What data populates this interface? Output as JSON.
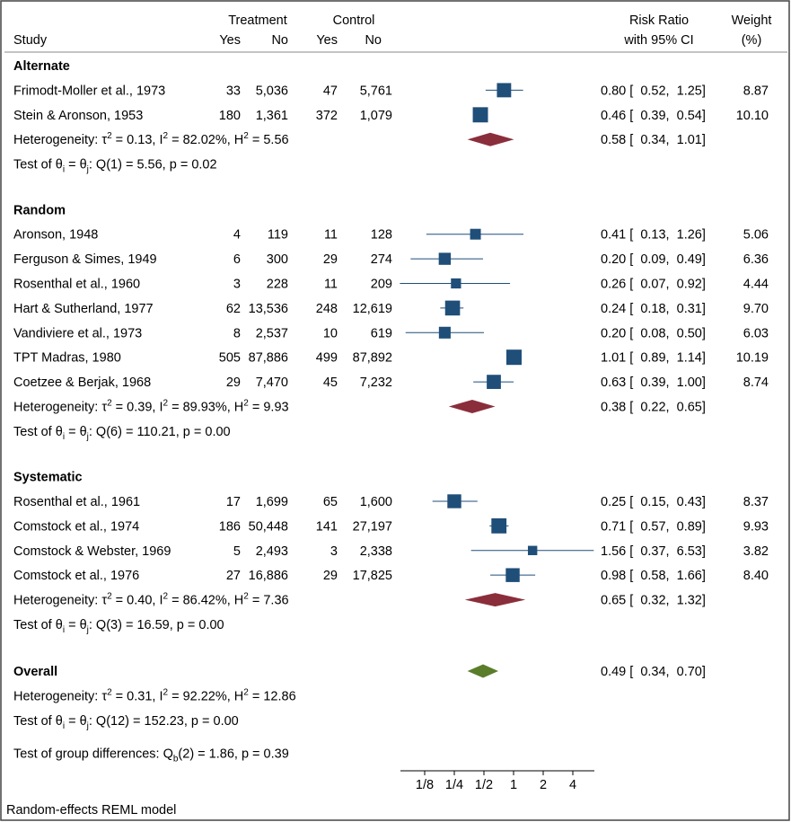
{
  "chart_data": {
    "type": "forest",
    "columns": {
      "study": "Study",
      "group1": "Treatment",
      "group2": "Control",
      "yes": "Yes",
      "no": "No",
      "effect_line1": "Risk Ratio",
      "effect_line2": "with 95% CI",
      "weight_line1": "Weight",
      "weight_line2": "(%)"
    },
    "x_axis": {
      "scale": "log",
      "ticks": [
        {
          "value": 0.125,
          "label": "1/8"
        },
        {
          "value": 0.25,
          "label": "1/4"
        },
        {
          "value": 0.5,
          "label": "1/2"
        },
        {
          "value": 1,
          "label": "1"
        },
        {
          "value": 2,
          "label": "2"
        },
        {
          "value": 4,
          "label": "4"
        }
      ],
      "reference_line": 1
    },
    "groups": [
      {
        "name": "Alternate",
        "studies": [
          {
            "study": "Frimodt-Moller et al., 1973",
            "t_yes": "33",
            "t_no": "5,036",
            "c_yes": "47",
            "c_no": "5,761",
            "rr": 0.8,
            "lo": 0.52,
            "hi": 1.25,
            "ci": "0.80 [  0.52,  1.25]",
            "weight": "8.87"
          },
          {
            "study": "Stein & Aronson, 1953",
            "t_yes": "180",
            "t_no": "1,361",
            "c_yes": "372",
            "c_no": "1,079",
            "rr": 0.46,
            "lo": 0.39,
            "hi": 0.54,
            "ci": "0.46 [  0.39,  0.54]",
            "weight": "10.10"
          }
        ],
        "summary": {
          "rr": 0.58,
          "lo": 0.34,
          "hi": 1.01,
          "ci": "0.58 [  0.34,  1.01]"
        },
        "heterogeneity": {
          "label": "Heterogeneity: ",
          "tau2": "0.13",
          "i2": "82.02%",
          "h2": "5.56"
        },
        "test": {
          "label": "Test of θ",
          "df": "1",
          "q": "5.56",
          "p": "0.02"
        }
      },
      {
        "name": "Random",
        "studies": [
          {
            "study": "Aronson, 1948",
            "t_yes": "4",
            "t_no": "119",
            "c_yes": "11",
            "c_no": "128",
            "rr": 0.41,
            "lo": 0.13,
            "hi": 1.26,
            "ci": "0.41 [  0.13,  1.26]",
            "weight": "5.06"
          },
          {
            "study": "Ferguson & Simes, 1949",
            "t_yes": "6",
            "t_no": "300",
            "c_yes": "29",
            "c_no": "274",
            "rr": 0.2,
            "lo": 0.09,
            "hi": 0.49,
            "ci": "0.20 [  0.09,  0.49]",
            "weight": "6.36"
          },
          {
            "study": "Rosenthal et al., 1960",
            "t_yes": "3",
            "t_no": "228",
            "c_yes": "11",
            "c_no": "209",
            "rr": 0.26,
            "lo": 0.07,
            "hi": 0.92,
            "ci": "0.26 [  0.07,  0.92]",
            "weight": "4.44"
          },
          {
            "study": "Hart & Sutherland, 1977",
            "t_yes": "62",
            "t_no": "13,536",
            "c_yes": "248",
            "c_no": "12,619",
            "rr": 0.24,
            "lo": 0.18,
            "hi": 0.31,
            "ci": "0.24 [  0.18,  0.31]",
            "weight": "9.70"
          },
          {
            "study": "Vandiviere et al., 1973",
            "t_yes": "8",
            "t_no": "2,537",
            "c_yes": "10",
            "c_no": "619",
            "rr": 0.2,
            "lo": 0.08,
            "hi": 0.5,
            "ci": "0.20 [  0.08,  0.50]",
            "weight": "6.03"
          },
          {
            "study": "TPT Madras, 1980",
            "t_yes": "505",
            "t_no": "87,886",
            "c_yes": "499",
            "c_no": "87,892",
            "rr": 1.01,
            "lo": 0.89,
            "hi": 1.14,
            "ci": "1.01 [  0.89,  1.14]",
            "weight": "10.19"
          },
          {
            "study": "Coetzee & Berjak, 1968",
            "t_yes": "29",
            "t_no": "7,470",
            "c_yes": "45",
            "c_no": "7,232",
            "rr": 0.63,
            "lo": 0.39,
            "hi": 1.0,
            "ci": "0.63 [  0.39,  1.00]",
            "weight": "8.74"
          }
        ],
        "summary": {
          "rr": 0.38,
          "lo": 0.22,
          "hi": 0.65,
          "ci": "0.38 [  0.22,  0.65]"
        },
        "heterogeneity": {
          "label": "Heterogeneity: ",
          "tau2": "0.39",
          "i2": "89.93%",
          "h2": "9.93"
        },
        "test": {
          "label": "Test of θ",
          "df": "6",
          "q": "110.21",
          "p": "0.00"
        }
      },
      {
        "name": "Systematic",
        "studies": [
          {
            "study": "Rosenthal et al., 1961",
            "t_yes": "17",
            "t_no": "1,699",
            "c_yes": "65",
            "c_no": "1,600",
            "rr": 0.25,
            "lo": 0.15,
            "hi": 0.43,
            "ci": "0.25 [  0.15,  0.43]",
            "weight": "8.37"
          },
          {
            "study": "Comstock et al., 1974",
            "t_yes": "186",
            "t_no": "50,448",
            "c_yes": "141",
            "c_no": "27,197",
            "rr": 0.71,
            "lo": 0.57,
            "hi": 0.89,
            "ci": "0.71 [  0.57,  0.89]",
            "weight": "9.93"
          },
          {
            "study": "Comstock & Webster, 1969",
            "t_yes": "5",
            "t_no": "2,493",
            "c_yes": "3",
            "c_no": "2,338",
            "rr": 1.56,
            "lo": 0.37,
            "hi": 6.53,
            "ci": "1.56 [  0.37,  6.53]",
            "weight": "3.82"
          },
          {
            "study": "Comstock et al., 1976",
            "t_yes": "27",
            "t_no": "16,886",
            "c_yes": "29",
            "c_no": "17,825",
            "rr": 0.98,
            "lo": 0.58,
            "hi": 1.66,
            "ci": "0.98 [  0.58,  1.66]",
            "weight": "8.40"
          }
        ],
        "summary": {
          "rr": 0.65,
          "lo": 0.32,
          "hi": 1.32,
          "ci": "0.65 [  0.32,  1.32]"
        },
        "heterogeneity": {
          "label": "Heterogeneity: ",
          "tau2": "0.40",
          "i2": "86.42%",
          "h2": "7.36"
        },
        "test": {
          "label": "Test of θ",
          "df": "3",
          "q": "16.59",
          "p": "0.00"
        }
      }
    ],
    "overall": {
      "name": "Overall",
      "summary": {
        "rr": 0.49,
        "lo": 0.34,
        "hi": 0.7,
        "ci": "0.49 [  0.34,  0.70]"
      },
      "heterogeneity": {
        "label": "Heterogeneity: ",
        "tau2": "0.31",
        "i2": "92.22%",
        "h2": "12.86"
      },
      "test": {
        "label": "Test of θ",
        "df": "12",
        "q": "152.23",
        "p": "0.00"
      }
    },
    "group_test": {
      "label": "Test of group differences: Q",
      "df": "2",
      "q": "1.86",
      "p": "0.39"
    },
    "note": "Random-effects REML model",
    "colors": {
      "study_marker": "#1f4e79",
      "ci_line": "#1f4e79",
      "group_diamond": "#8b2e3b",
      "overall_diamond": "#5a7d2a",
      "border": "#444444"
    }
  }
}
